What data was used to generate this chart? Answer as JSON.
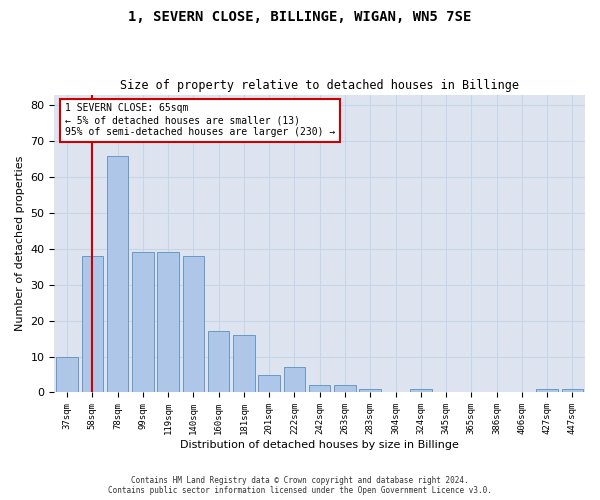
{
  "title_line1": "1, SEVERN CLOSE, BILLINGE, WIGAN, WN5 7SE",
  "title_line2": "Size of property relative to detached houses in Billinge",
  "xlabel": "Distribution of detached houses by size in Billinge",
  "ylabel": "Number of detached properties",
  "categories": [
    "37sqm",
    "58sqm",
    "78sqm",
    "99sqm",
    "119sqm",
    "140sqm",
    "160sqm",
    "181sqm",
    "201sqm",
    "222sqm",
    "242sqm",
    "263sqm",
    "283sqm",
    "304sqm",
    "324sqm",
    "345sqm",
    "365sqm",
    "386sqm",
    "406sqm",
    "427sqm",
    "447sqm"
  ],
  "values": [
    10,
    38,
    66,
    39,
    39,
    38,
    17,
    16,
    5,
    7,
    2,
    2,
    1,
    0,
    1,
    0,
    0,
    0,
    0,
    1,
    1
  ],
  "bar_color": "#aec6e8",
  "bar_edge_color": "#5a8fc0",
  "vline_x": 1.0,
  "vline_color": "#cc0000",
  "annotation_text": "1 SEVERN CLOSE: 65sqm\n← 5% of detached houses are smaller (13)\n95% of semi-detached houses are larger (230) →",
  "annotation_box_color": "#ffffff",
  "annotation_box_edge_color": "#cc0000",
  "ylim": [
    0,
    83
  ],
  "yticks": [
    0,
    10,
    20,
    30,
    40,
    50,
    60,
    70,
    80
  ],
  "grid_color": "#c8d4e8",
  "bg_color": "#dde4f0",
  "footer_line1": "Contains HM Land Registry data © Crown copyright and database right 2024.",
  "footer_line2": "Contains public sector information licensed under the Open Government Licence v3.0."
}
